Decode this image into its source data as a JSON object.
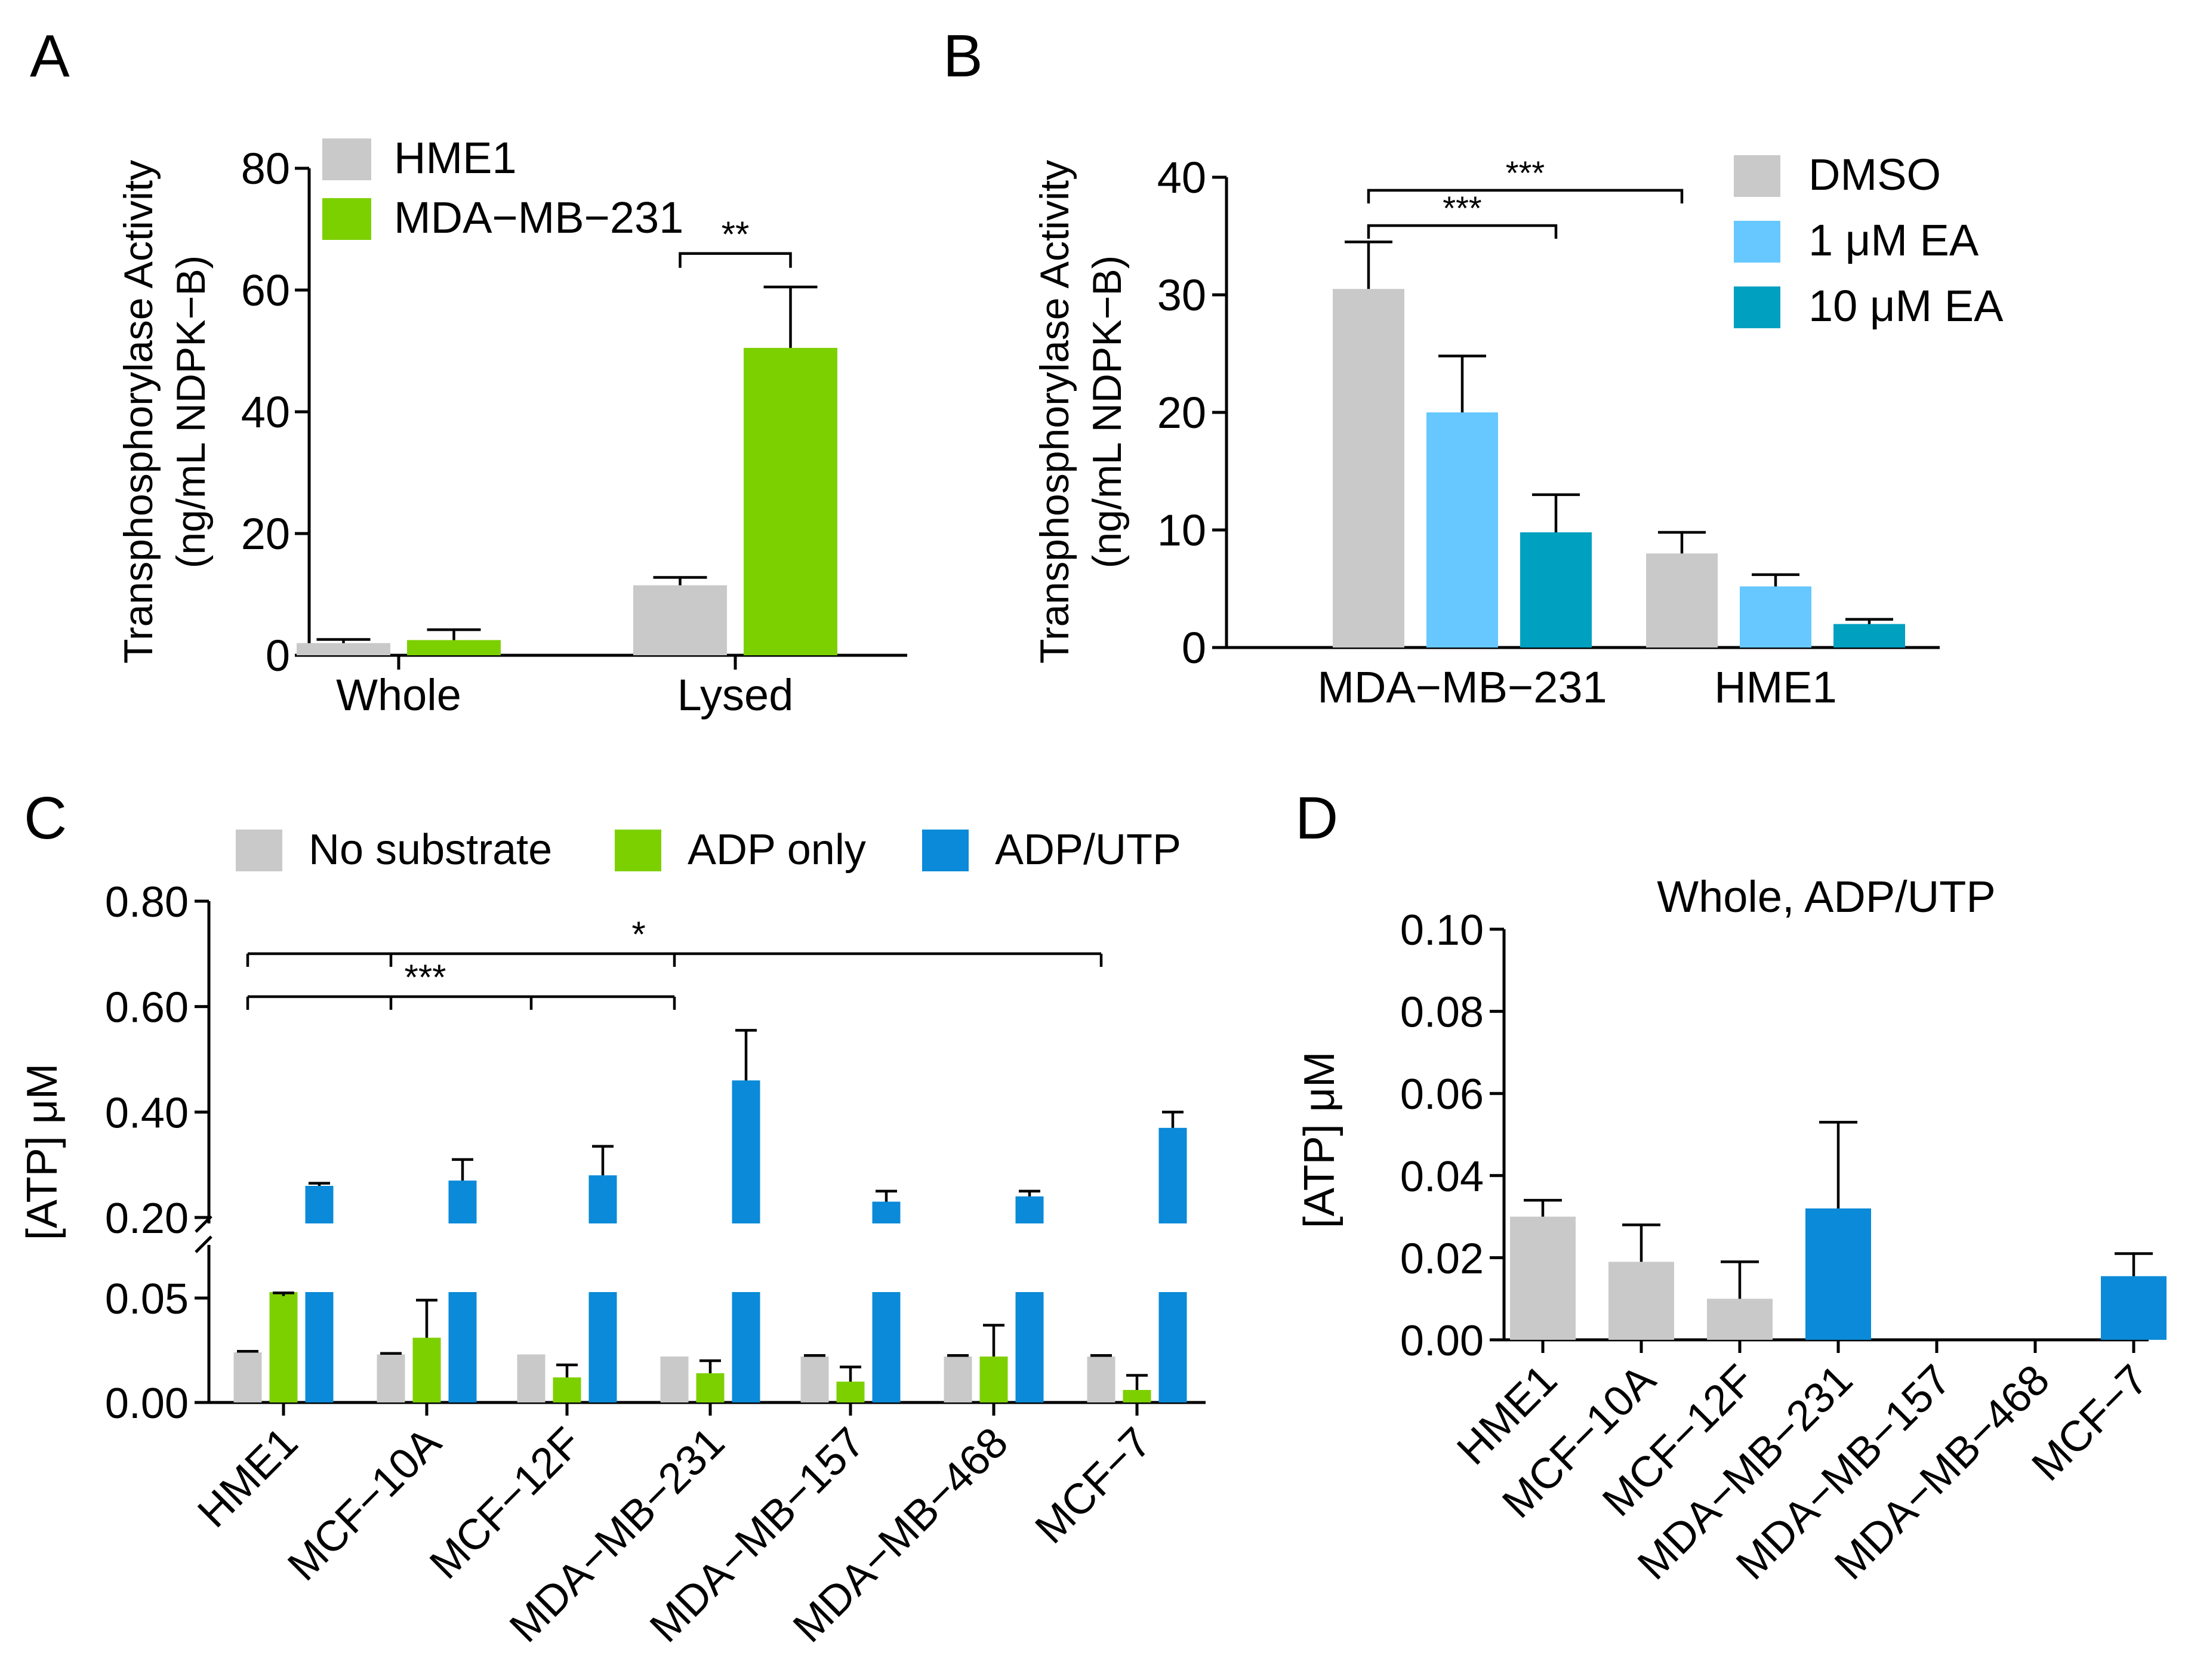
{
  "colors": {
    "gray": "#c9c9c9",
    "green": "#7dd000",
    "light_blue": "#66c8ff",
    "teal": "#00a0c0",
    "blue": "#0a8ad8"
  },
  "chart_data": [
    {
      "id": "A",
      "panel_label": "A",
      "type": "bar",
      "title": "",
      "ylabel": [
        "Transphosphorylase Activity",
        "(ng/mL NDPK−B)"
      ],
      "xlabel": "",
      "ylim": [
        0,
        80
      ],
      "yticks": [
        0,
        20,
        40,
        60,
        80
      ],
      "categories": [
        "Whole",
        "Lysed"
      ],
      "series": [
        {
          "name": "HME1",
          "color_key": "gray",
          "values": [
            2.0,
            11.5
          ],
          "errors": [
            0.6,
            1.3
          ]
        },
        {
          "name": "MDA−MB−231",
          "color_key": "green",
          "values": [
            2.5,
            50.5
          ],
          "errors": [
            1.7,
            10.0
          ]
        }
      ],
      "legend": "top-left",
      "significance": [
        {
          "label": "**",
          "from": [
            1,
            0
          ],
          "to": [
            1,
            1
          ],
          "y": 66
        }
      ]
    },
    {
      "id": "B",
      "panel_label": "B",
      "type": "bar",
      "title": "",
      "ylabel": [
        "Transphosphorylase Activity",
        "(ng/mL NDPK−B)"
      ],
      "xlabel": "",
      "ylim": [
        0,
        40
      ],
      "yticks": [
        0,
        10,
        20,
        30,
        40
      ],
      "categories": [
        "MDA−MB−231",
        "HME1"
      ],
      "series": [
        {
          "name": "DMSO",
          "color_key": "gray",
          "values": [
            30.5,
            8.0
          ],
          "errors": [
            4.0,
            1.8
          ]
        },
        {
          "name": "1 μM EA",
          "color_key": "light_blue",
          "values": [
            20.0,
            5.2
          ],
          "errors": [
            4.8,
            1.0
          ]
        },
        {
          "name": "10 μM EA",
          "color_key": "teal",
          "values": [
            9.8,
            2.0
          ],
          "errors": [
            3.2,
            0.4
          ]
        }
      ],
      "legend": "top-right",
      "significance": [
        {
          "label": "***",
          "from": [
            0,
            0
          ],
          "to": [
            1,
            0
          ],
          "y": 39.5
        },
        {
          "label": "***",
          "from": [
            0,
            0
          ],
          "to": [
            0,
            2
          ],
          "y": 36.5
        }
      ]
    },
    {
      "id": "C",
      "panel_label": "C",
      "type": "bar",
      "title": "",
      "ylabel": "[ATP] μM",
      "xlabel": "",
      "broken_axis": true,
      "ylim_lower": [
        0,
        0.05
      ],
      "yticks_lower": [
        0.0,
        0.05
      ],
      "ytick_labels_lower": [
        "0.00",
        "0.05"
      ],
      "ylim_upper": [
        0.2,
        0.8
      ],
      "yticks_upper": [
        0.2,
        0.4,
        0.6,
        0.8
      ],
      "ytick_labels_upper": [
        "0.20",
        "0.40",
        "0.60",
        "0.80"
      ],
      "categories": [
        "HME1",
        "MCF−10A",
        "MCF−12F",
        "MDA−MB−231",
        "MDA−MB−157",
        "MDA−MB−468",
        "MCF−7"
      ],
      "series": [
        {
          "name": "No substrate",
          "color_key": "gray",
          "values": [
            0.024,
            0.023,
            0.023,
            0.022,
            0.022,
            0.022,
            0.022
          ],
          "errors": [
            0.0005,
            0.0005,
            0,
            0,
            0.0005,
            0.0005,
            0.0005
          ]
        },
        {
          "name": "ADP only",
          "color_key": "green",
          "values": [
            0.051,
            0.031,
            0.012,
            0.014,
            0.01,
            0.022,
            0.006
          ],
          "errors": [
            0.006,
            0.018,
            0.006,
            0.006,
            0.007,
            0.015,
            0.007
          ]
        },
        {
          "name": "ADP/UTP",
          "color_key": "blue",
          "values": [
            0.26,
            0.27,
            0.28,
            0.46,
            0.23,
            0.24,
            0.37
          ],
          "errors": [
            0.005,
            0.04,
            0.055,
            0.095,
            0.02,
            0.01,
            0.03
          ]
        }
      ],
      "legend": "top",
      "significance": [
        {
          "label": "*",
          "groups": [
            0,
            1,
            3,
            6
          ],
          "level": "upper"
        },
        {
          "label": "***",
          "groups": [
            0,
            1,
            2,
            3
          ],
          "level": "lower"
        }
      ]
    },
    {
      "id": "D",
      "panel_label": "D",
      "type": "bar",
      "title": "Whole, ADP/UTP",
      "ylabel": "[ATP] μM",
      "xlabel": "",
      "ylim": [
        0,
        0.1
      ],
      "yticks": [
        0.0,
        0.02,
        0.04,
        0.06,
        0.08,
        0.1
      ],
      "ytick_labels": [
        "0.00",
        "0.02",
        "0.04",
        "0.06",
        "0.08",
        "0.10"
      ],
      "categories": [
        "HME1",
        "MCF−10A",
        "MCF−12F",
        "MDA−MB−231",
        "MDA−MB−157",
        "MDA−MB−468",
        "MCF−7"
      ],
      "values": [
        0.03,
        0.019,
        0.01,
        0.032,
        0,
        0,
        0.0155
      ],
      "errors": [
        0.004,
        0.009,
        0.009,
        0.021,
        0,
        0,
        0.0055
      ],
      "bar_color_keys": [
        "gray",
        "gray",
        "gray",
        "blue",
        "blue",
        "blue",
        "blue"
      ]
    }
  ]
}
